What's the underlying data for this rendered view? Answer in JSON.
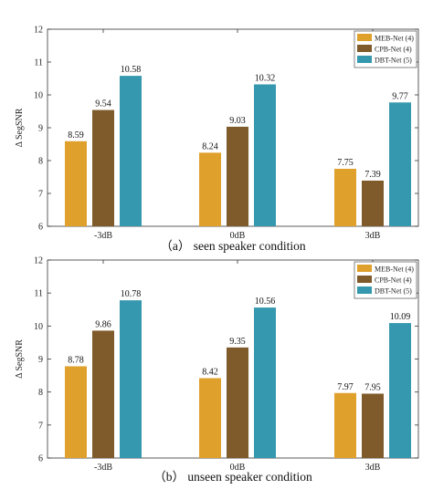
{
  "colors": {
    "MEB-Net (4)": "#E0A02C",
    "CPB-Net (4)": "#7F5A2A",
    "DBT-Net (5)": "#3598AF",
    "axis": "#333333"
  },
  "chart_data": [
    {
      "type": "bar",
      "categories": [
        "-3dB",
        "0dB",
        "3dB"
      ],
      "series": [
        {
          "name": "MEB-Net (4)",
          "values": [
            8.59,
            8.24,
            7.75
          ]
        },
        {
          "name": "CPB-Net (4)",
          "values": [
            9.54,
            9.03,
            7.39
          ]
        },
        {
          "name": "DBT-Net (5)",
          "values": [
            10.58,
            10.32,
            9.77
          ]
        }
      ],
      "data_labels": [
        [
          "8.59",
          "8.24",
          "7.75"
        ],
        [
          "9.54",
          "9.03",
          "7.39"
        ],
        [
          "10.58",
          "10.32",
          "9.77"
        ]
      ],
      "ylabel": "Δ SegSNR",
      "ylim": [
        6,
        12
      ],
      "yticks": [
        "6",
        "7",
        "8",
        "9",
        "10",
        "11",
        "12"
      ],
      "caption": "（a） seen speaker condition",
      "legend": "top-right",
      "grid": false
    },
    {
      "type": "bar",
      "categories": [
        "-3dB",
        "0dB",
        "3dB"
      ],
      "series": [
        {
          "name": "MEB-Net (4)",
          "values": [
            8.78,
            8.42,
            7.97
          ]
        },
        {
          "name": "CPB-Net (4)",
          "values": [
            9.86,
            9.35,
            7.95
          ]
        },
        {
          "name": "DBT-Net (5)",
          "values": [
            10.78,
            10.56,
            10.09
          ]
        }
      ],
      "data_labels": [
        [
          "8.78",
          "8.42",
          "7.97"
        ],
        [
          "9.86",
          "9.35",
          "7.95"
        ],
        [
          "10.78",
          "10.56",
          "10.09"
        ]
      ],
      "ylabel": "Δ SegSNR",
      "ylim": [
        6,
        12
      ],
      "yticks": [
        "6",
        "7",
        "8",
        "9",
        "10",
        "11",
        "12"
      ],
      "caption": "（b） unseen speaker condition",
      "legend": "top-right",
      "grid": false
    }
  ]
}
